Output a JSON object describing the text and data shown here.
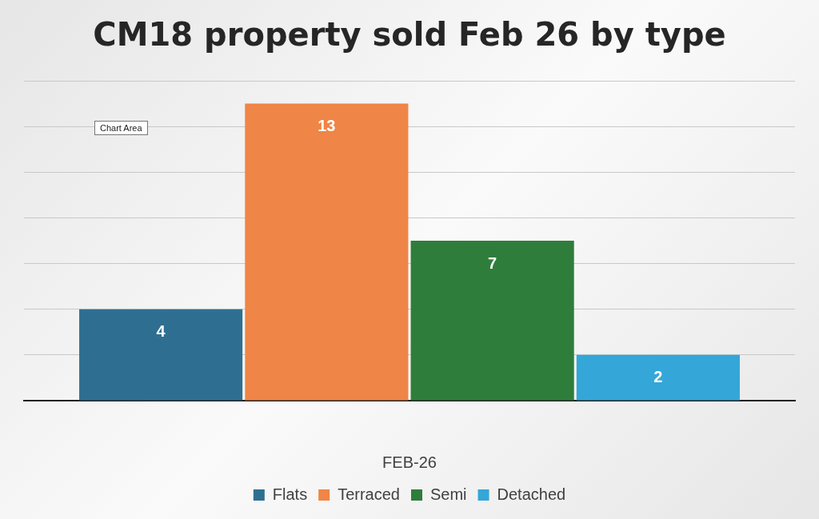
{
  "chart_data": {
    "type": "bar",
    "title": "CM18 property sold Feb 26 by type",
    "xlabel": "FEB-26",
    "categories": [
      null
    ],
    "series": [
      {
        "name": "Flats",
        "color": "#2e6f91",
        "values": [
          4
        ]
      },
      {
        "name": "Terraced",
        "color": "#ef8546",
        "values": [
          13
        ]
      },
      {
        "name": "Semi",
        "color": "#2f7d3b",
        "values": [
          7
        ]
      },
      {
        "name": "Detached",
        "color": "#34a6d8",
        "values": [
          2
        ]
      }
    ],
    "tick_labels": "x",
    "grid": "y",
    "legend": "bottom",
    "data_labels": true,
    "annotations": [
      "Chart Area"
    ]
  }
}
